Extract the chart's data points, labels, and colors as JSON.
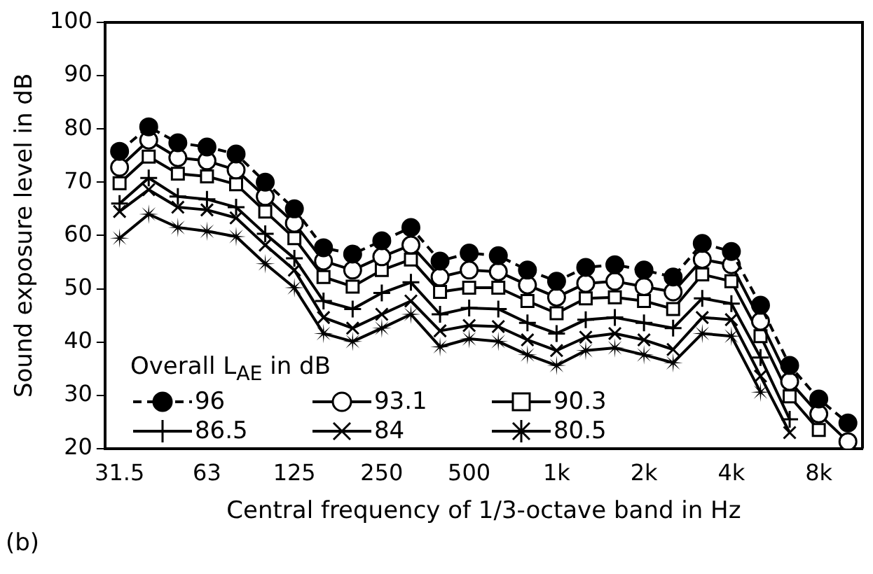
{
  "chart_data": {
    "type": "line",
    "xlabel": "Central frequency of 1/3-octave band in Hz",
    "ylabel": "Sound exposure level in dB",
    "legend_title": "Overall L$_{AE}$ in dB",
    "legend": "bottom left",
    "grid": false,
    "categories": [
      "31.5",
      null,
      null,
      "63",
      null,
      null,
      "125",
      null,
      null,
      "250",
      null,
      null,
      "500",
      null,
      null,
      "1k",
      null,
      null,
      "2k",
      null,
      null,
      "4k",
      null,
      null,
      "8k",
      null
    ],
    "ylim": [
      20,
      100
    ],
    "yticks": [
      20,
      30,
      40,
      50,
      60,
      70,
      80,
      90,
      100
    ],
    "annotations": [
      "(b)"
    ],
    "series": [
      {
        "name": "96",
        "color": "#000000",
        "marker": "circle",
        "line_style": "dashed",
        "values": [
          75.8,
          80.4,
          77.4,
          76.6,
          75.3,
          70,
          65,
          57.7,
          56.5,
          59,
          61.5,
          55.2,
          56.7,
          56.2,
          53.5,
          51.4,
          54,
          54.5,
          53.5,
          52.2,
          58.5,
          57,
          46.9,
          35.6,
          29.3,
          24.8
        ]
      },
      {
        "name": "93.1",
        "color": "#000000",
        "marker": "circle-open",
        "line_style": "solid",
        "values": [
          72.8,
          77.9,
          74.6,
          74,
          72.3,
          67.3,
          62.3,
          55.2,
          53.5,
          56,
          58.2,
          52.2,
          53.5,
          53.2,
          50.7,
          48.4,
          51,
          51.4,
          50.4,
          49.4,
          55.5,
          54.5,
          43.9,
          32.6,
          26.5,
          21.3
        ]
      },
      {
        "name": "90.3",
        "color": "#000000",
        "marker": "square",
        "line_style": "solid",
        "values": [
          69.8,
          74.8,
          71.6,
          71.1,
          69.6,
          64.5,
          59.5,
          52.2,
          50.4,
          53.5,
          55.5,
          49.4,
          50.2,
          50.2,
          47.7,
          45.4,
          48.2,
          48.4,
          47.7,
          46.2,
          52.7,
          51.4,
          41.1,
          29.8,
          23.5,
          null
        ]
      },
      {
        "name": "86.5",
        "color": "#000000",
        "marker": "cross",
        "line_style": "solid",
        "values": [
          66,
          70.8,
          67.3,
          66.8,
          65.3,
          60.3,
          55.7,
          47.7,
          46.2,
          49.2,
          51.2,
          45.2,
          46.4,
          46.2,
          43.6,
          41.6,
          44.2,
          44.6,
          43.6,
          42.6,
          48.2,
          47.2,
          37.1,
          25.5,
          null,
          null
        ]
      },
      {
        "name": "84",
        "color": "#000000",
        "marker": "x",
        "line_style": "solid",
        "values": [
          64.5,
          68.6,
          65.3,
          64.8,
          63.3,
          58.2,
          53.5,
          44.6,
          42.6,
          45.2,
          47.7,
          42.1,
          43.1,
          42.9,
          40.4,
          38.4,
          40.9,
          41.6,
          40.4,
          38.6,
          44.6,
          44.2,
          33.6,
          23,
          null,
          null
        ]
      },
      {
        "name": "80.5",
        "color": "#000000",
        "marker": "star",
        "line_style": "solid",
        "values": [
          59.5,
          64,
          61.5,
          60.8,
          59.8,
          54.7,
          50.2,
          41.6,
          40.1,
          42.6,
          45.2,
          39.1,
          40.6,
          40.1,
          37.6,
          35.6,
          38.4,
          38.9,
          37.6,
          36.1,
          41.6,
          41.1,
          30.6,
          null,
          null,
          null
        ]
      }
    ]
  }
}
